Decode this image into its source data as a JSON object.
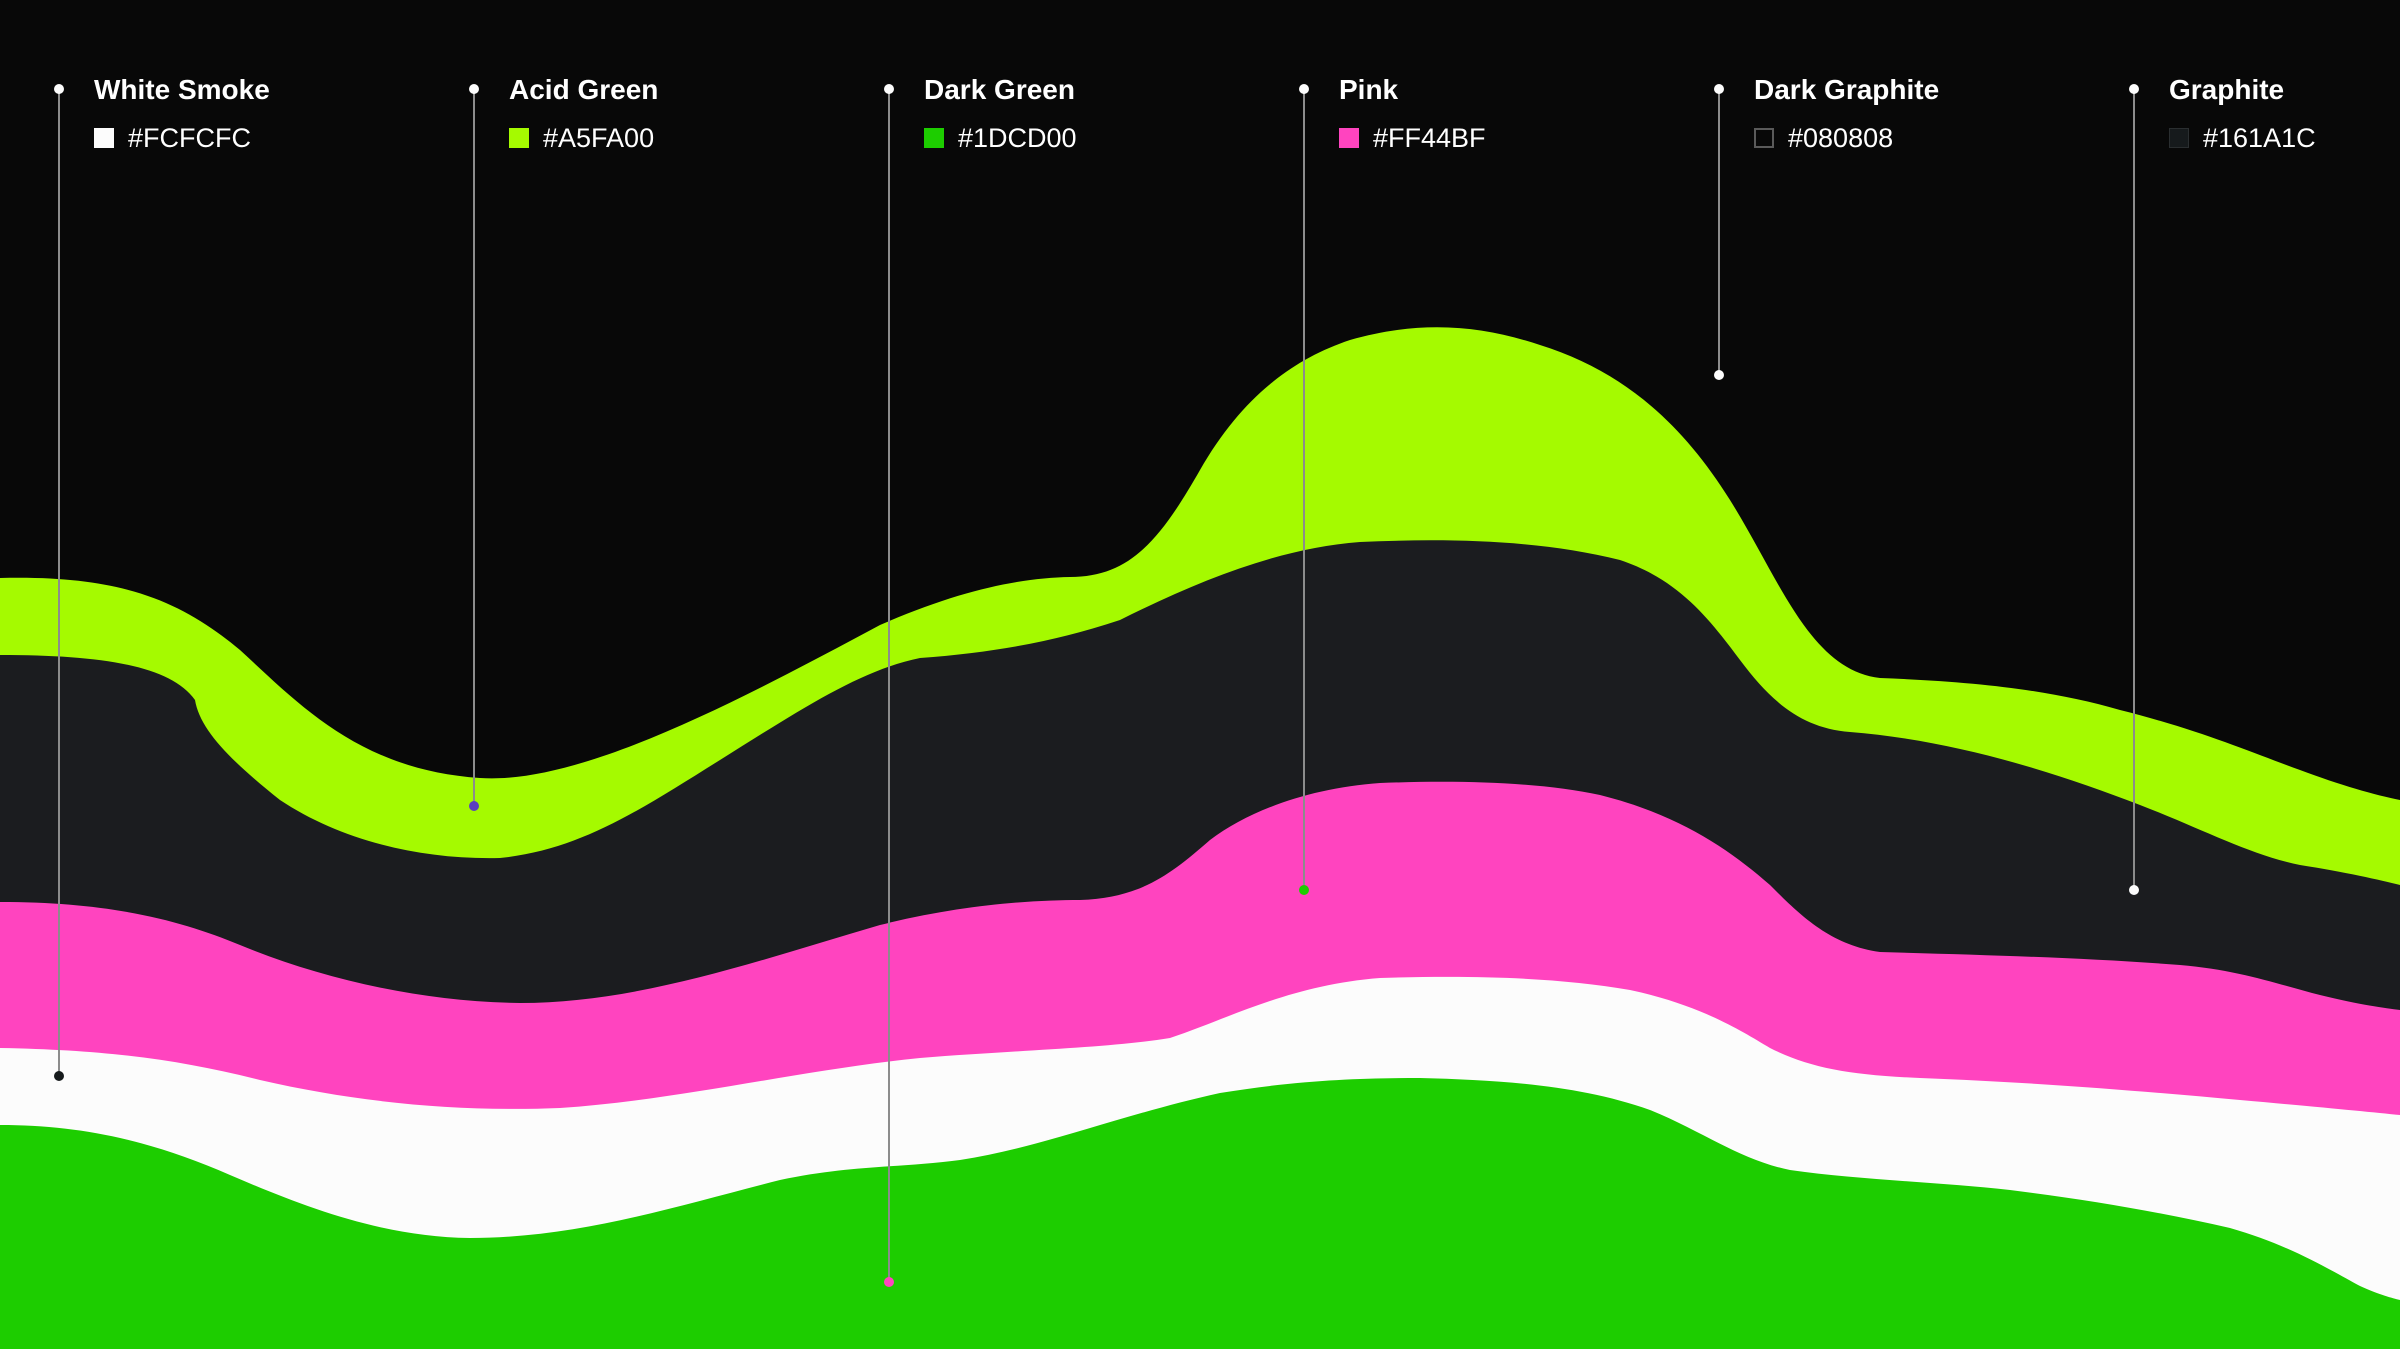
{
  "palette": [
    {
      "name": "White Smoke",
      "hex": "#FCFCFC",
      "color": "#FCFCFC"
    },
    {
      "name": "Acid Green",
      "hex": "#A5FA00",
      "color": "#A5FA00"
    },
    {
      "name": "Dark Green",
      "hex": "#1DCD00",
      "color": "#1DCD00"
    },
    {
      "name": "Pink",
      "hex": "#FF44BF",
      "color": "#FF44BF"
    },
    {
      "name": "Dark Graphite",
      "hex": "#080808",
      "color": "#080808"
    },
    {
      "name": "Graphite",
      "hex": "#161A1C",
      "color": "#161A1C"
    }
  ],
  "colors": {
    "background": "#080808",
    "band_acid_green": "#A5FA00",
    "band_graphite": "#1B1C1F",
    "band_pink": "#FF44BF",
    "band_white": "#FCFCFC",
    "band_dark_green": "#1DCD00",
    "leader_line": "#8C8C8C"
  }
}
